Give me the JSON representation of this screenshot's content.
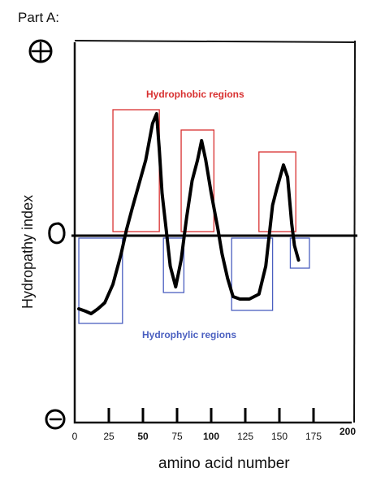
{
  "part_label": "Part A:",
  "chart_data": {
    "type": "line",
    "xlabel": "amino acid number",
    "ylabel": "Hydropathy index",
    "x_ticks": [
      "0",
      "25",
      "50",
      "75",
      "100",
      "125",
      "150",
      "175",
      "200"
    ],
    "xlim": [
      0,
      200
    ],
    "ylim": [
      -1,
      1
    ],
    "y_markers": {
      "positive": "+",
      "zero": "0",
      "negative": "-"
    },
    "series": [
      {
        "x": [
          3,
          8,
          12,
          17,
          22,
          28,
          34,
          38,
          42,
          47,
          52,
          57,
          60,
          62,
          64,
          67,
          70,
          74,
          78,
          82,
          86,
          90,
          93,
          96,
          100,
          105,
          108,
          112,
          116,
          121,
          128,
          135,
          140,
          145,
          148,
          153,
          156,
          159,
          161,
          164
        ],
        "values": [
          -0.6,
          -0.62,
          -0.64,
          -0.6,
          -0.55,
          -0.4,
          -0.15,
          0.05,
          0.22,
          0.42,
          0.62,
          0.92,
          1.0,
          0.7,
          0.35,
          0.05,
          -0.25,
          -0.42,
          -0.2,
          0.15,
          0.45,
          0.62,
          0.78,
          0.62,
          0.35,
          0.05,
          -0.15,
          -0.35,
          -0.5,
          -0.52,
          -0.52,
          -0.48,
          -0.25,
          0.25,
          0.38,
          0.58,
          0.48,
          0.1,
          -0.08,
          -0.2
        ]
      }
    ],
    "annotations": {
      "hydrophobic_label": "Hydrophobic  regions",
      "hydrophilic_label": "Hydrophylic regions",
      "hydrophobic_color": "#d83030",
      "hydrophilic_color": "#4a5fc0",
      "hydrophobic_regions": [
        [
          28,
          62
        ],
        [
          78,
          102
        ],
        [
          135,
          162
        ]
      ],
      "hydrophilic_regions": [
        [
          3,
          35
        ],
        [
          65,
          80
        ],
        [
          115,
          145
        ],
        [
          158,
          172
        ]
      ]
    }
  }
}
